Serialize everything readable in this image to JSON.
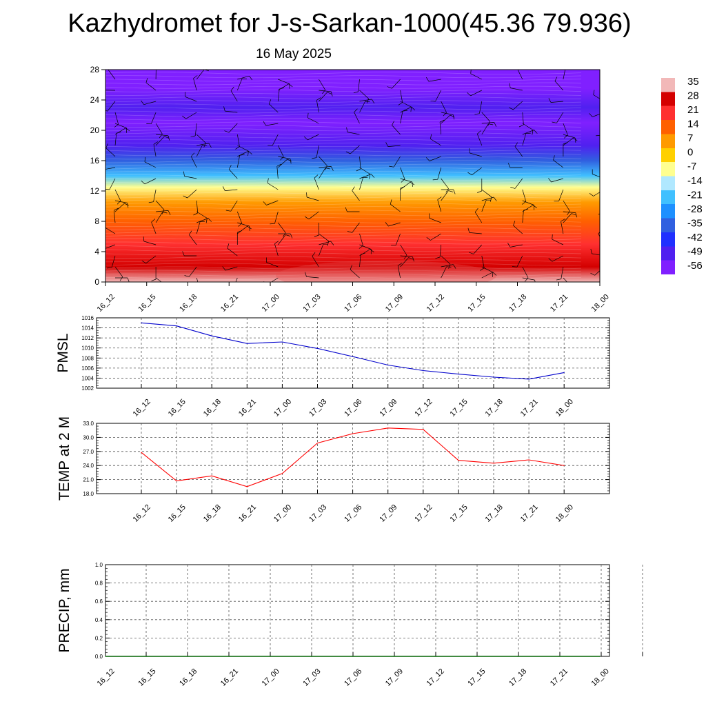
{
  "title": "Kazhydromet for J-s-Sarkan-1000(45.36 79.936)",
  "date": "16 May 2025",
  "chart_data": [
    {
      "type": "heatmap",
      "description_of_axes": "",
      "x_ticks": [
        "16_12",
        "16_15",
        "16_18",
        "16_21",
        "17_00",
        "17_03",
        "17_06",
        "17_09",
        "17_12",
        "17_15",
        "17_18",
        "17_21",
        "18_00"
      ],
      "y_ticks": [
        0,
        4,
        8,
        12,
        16,
        20,
        24,
        28
      ],
      "ylim": [
        0,
        28
      ],
      "colorbar": {
        "labels": [
          "35",
          "28",
          "21",
          "14",
          "7",
          "0",
          "-7",
          "-14",
          "-21",
          "-28",
          "-35",
          "-42",
          "-49",
          "-56"
        ],
        "colors": [
          "#f2b8b8",
          "#d40000",
          "#ff3030",
          "#ff6000",
          "#ff9a00",
          "#ffd000",
          "#ffff90",
          "#b0e8ff",
          "#40c0ff",
          "#1e90ff",
          "#3060e0",
          "#2030ff",
          "#5020f0",
          "#8020ff"
        ]
      },
      "temperature_profile": [
        {
          "z": 0,
          "value": 35
        },
        {
          "z": 2,
          "value": 30
        },
        {
          "z": 5,
          "value": 24
        },
        {
          "z": 8,
          "value": 14
        },
        {
          "z": 10.5,
          "value": 7
        },
        {
          "z": 12.5,
          "value": -7
        },
        {
          "z": 14,
          "value": -21
        },
        {
          "z": 16,
          "value": -35
        },
        {
          "z": 18,
          "value": -49
        },
        {
          "z": 21,
          "value": -56
        },
        {
          "z": 23,
          "value": -49
        },
        {
          "z": 25.5,
          "value": -56
        },
        {
          "z": 28,
          "value": -56
        }
      ]
    },
    {
      "type": "line",
      "ylabel": "PMSL",
      "x": [
        "16_12",
        "16_15",
        "16_18",
        "16_21",
        "17_00",
        "17_03",
        "17_06",
        "17_09",
        "17_12",
        "17_15",
        "17_18",
        "17_21",
        "18_00"
      ],
      "series": [
        {
          "color": "#0000cc",
          "values": [
            1015.0,
            1014.4,
            1012.4,
            1010.9,
            1011.2,
            1009.9,
            1008.3,
            1006.6,
            1005.5,
            1004.8,
            1004.2,
            1003.8,
            1005.1
          ]
        }
      ],
      "ylim": [
        1002,
        1016
      ],
      "y_ticks": [
        "1002",
        "1004",
        "1006",
        "1008",
        "1010",
        "1012",
        "1014",
        "1016"
      ]
    },
    {
      "type": "line",
      "ylabel": "TEMP at 2 M",
      "x": [
        "16_12",
        "16_15",
        "16_18",
        "16_21",
        "17_00",
        "17_03",
        "17_06",
        "17_09",
        "17_12",
        "17_15",
        "17_18",
        "17_21",
        "18_00"
      ],
      "series": [
        {
          "color": "#ff0000",
          "values": [
            26.8,
            20.7,
            21.8,
            19.5,
            22.3,
            28.8,
            30.8,
            32.0,
            31.7,
            25.1,
            24.5,
            25.2,
            24.0
          ]
        }
      ],
      "ylim": [
        18,
        33
      ],
      "y_ticks": [
        "18.0",
        "21.0",
        "24.0",
        "27.0",
        "30.0",
        "33.0"
      ]
    },
    {
      "type": "line",
      "ylabel": "PRECIP, mm",
      "x": [
        "16_12",
        "16_15",
        "16_18",
        "16_21",
        "17_00",
        "17_03",
        "17_06",
        "17_09",
        "17_12",
        "17_15",
        "17_18",
        "17_21",
        "18_00"
      ],
      "series": [
        {
          "color": "#006400",
          "values": [
            0,
            0,
            0,
            0,
            0,
            0,
            0,
            0,
            0,
            0,
            0,
            0,
            0
          ]
        }
      ],
      "ylim": [
        0,
        1
      ],
      "y_ticks": [
        "0.0",
        "0.2",
        "0.4",
        "0.6",
        "0.8",
        "1.0"
      ]
    }
  ]
}
